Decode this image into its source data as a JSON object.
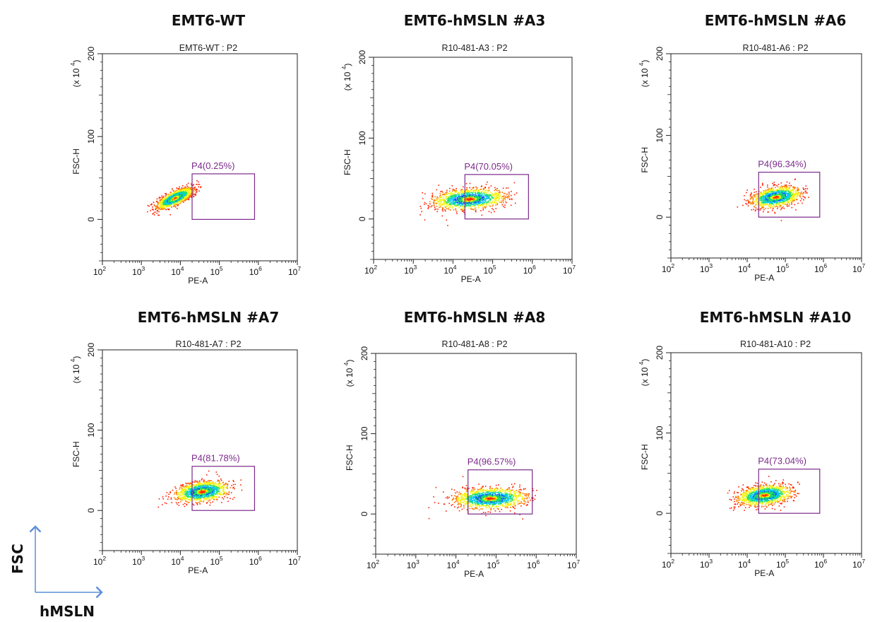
{
  "chart_data": [
    {
      "type": "scatter",
      "title": "EMT6-WT",
      "subtitle": "EMT6-WT : P2",
      "xlabel": "PE-A",
      "ylabel": "FSC-H",
      "y_multiplier": "(x 10",
      "y_multiplier_exp": "4",
      "y_multiplier_close": ")",
      "x_scale": "log",
      "xlim": [
        100,
        10000000
      ],
      "ylim": [
        -50,
        200
      ],
      "x_tick_base": "10",
      "x_tick_exps": [
        "2",
        "3",
        "4",
        "5",
        "6",
        "7"
      ],
      "y_ticks": [
        "0",
        "100",
        "200"
      ],
      "grid": false,
      "gate": {
        "name": "P4",
        "label": "P4(0.25%)",
        "percent": 0.25,
        "x_range": [
          20000,
          800000
        ],
        "y_range": [
          0,
          55
        ]
      },
      "population": {
        "x_center": 7000,
        "x_spread_decades": 0.22,
        "y_center": 26,
        "y_spread": 6,
        "x_min": 1200,
        "x_max": 60000,
        "correlation": 0.75
      }
    },
    {
      "type": "scatter",
      "title": "EMT6-hMSLN #A3",
      "subtitle": "R10-481-A3 : P2",
      "xlabel": "PE-A",
      "ylabel": "FSC-H",
      "y_multiplier": "(x 10",
      "y_multiplier_exp": "4",
      "y_multiplier_close": ")",
      "x_scale": "log",
      "xlim": [
        100,
        10000000
      ],
      "ylim": [
        -50,
        200
      ],
      "x_tick_base": "10",
      "x_tick_exps": [
        "2",
        "3",
        "4",
        "5",
        "6",
        "7"
      ],
      "y_ticks": [
        "0",
        "100",
        "200"
      ],
      "grid": false,
      "gate": {
        "name": "P4",
        "label": "P4(70.05%)",
        "percent": 70.05,
        "x_range": [
          20000,
          800000
        ],
        "y_range": [
          0,
          55
        ]
      },
      "population": {
        "x_center": 25000,
        "x_spread_decades": 0.42,
        "y_center": 25,
        "y_spread": 6,
        "x_min": 1400,
        "x_max": 400000,
        "correlation": 0.2
      }
    },
    {
      "type": "scatter",
      "title": "EMT6-hMSLN #A6",
      "subtitle": "R10-481-A6 : P2",
      "xlabel": "PE-A",
      "ylabel": "FSC-H",
      "y_multiplier": "(x 10",
      "y_multiplier_exp": "4",
      "y_multiplier_close": ")",
      "x_scale": "log",
      "xlim": [
        100,
        10000000
      ],
      "ylim": [
        -50,
        200
      ],
      "x_tick_base": "10",
      "x_tick_exps": [
        "2",
        "3",
        "4",
        "5",
        "6",
        "7"
      ],
      "y_ticks": [
        "0",
        "100",
        "200"
      ],
      "grid": false,
      "gate": {
        "name": "P4",
        "label": "P4(96.34%)",
        "percent": 96.34,
        "x_range": [
          20000,
          800000
        ],
        "y_range": [
          0,
          55
        ]
      },
      "population": {
        "x_center": 55000,
        "x_spread_decades": 0.3,
        "y_center": 25,
        "y_spread": 6,
        "x_min": 5000,
        "x_max": 400000,
        "correlation": 0.35
      }
    },
    {
      "type": "scatter",
      "title": "EMT6-hMSLN #A7",
      "subtitle": "R10-481-A7 : P2",
      "xlabel": "PE-A",
      "ylabel": "FSC-H",
      "y_multiplier": "(x 10",
      "y_multiplier_exp": "4",
      "y_multiplier_close": ")",
      "x_scale": "log",
      "xlim": [
        100,
        10000000
      ],
      "ylim": [
        -50,
        200
      ],
      "x_tick_base": "10",
      "x_tick_exps": [
        "2",
        "3",
        "4",
        "5",
        "6",
        "7"
      ],
      "y_ticks": [
        "0",
        "100",
        "200"
      ],
      "grid": false,
      "gate": {
        "name": "P4",
        "label": "P4(81.78%)",
        "percent": 81.78,
        "x_range": [
          20000,
          800000
        ],
        "y_range": [
          0,
          55
        ]
      },
      "population": {
        "x_center": 35000,
        "x_spread_decades": 0.32,
        "y_center": 24,
        "y_spread": 6,
        "x_min": 2500,
        "x_max": 400000,
        "correlation": 0.3
      }
    },
    {
      "type": "scatter",
      "title": "EMT6-hMSLN #A8",
      "subtitle": "R10-481-A8 : P2",
      "xlabel": "PE-A",
      "ylabel": "FSC-H",
      "y_multiplier": "(x 10",
      "y_multiplier_exp": "4",
      "y_multiplier_close": ")",
      "x_scale": "log",
      "xlim": [
        100,
        10000000
      ],
      "ylim": [
        -50,
        200
      ],
      "x_tick_base": "10",
      "x_tick_exps": [
        "2",
        "3",
        "4",
        "5",
        "6",
        "7"
      ],
      "y_ticks": [
        "0",
        "100",
        "200"
      ],
      "grid": false,
      "gate": {
        "name": "P4",
        "label": "P4(96.57%)",
        "percent": 96.57,
        "x_range": [
          20000,
          800000
        ],
        "y_range": [
          0,
          55
        ]
      },
      "population": {
        "x_center": 70000,
        "x_spread_decades": 0.42,
        "y_center": 20,
        "y_spread": 6,
        "x_min": 1500,
        "x_max": 1000000,
        "correlation": 0.1
      }
    },
    {
      "type": "scatter",
      "title": "EMT6-hMSLN #A10",
      "subtitle": "R10-481-A10 : P2",
      "xlabel": "PE-A",
      "ylabel": "FSC-H",
      "y_multiplier": "(x 10",
      "y_multiplier_exp": "4",
      "y_multiplier_close": ")",
      "x_scale": "log",
      "xlim": [
        100,
        10000000
      ],
      "ylim": [
        -50,
        200
      ],
      "x_tick_base": "10",
      "x_tick_exps": [
        "2",
        "3",
        "4",
        "5",
        "6",
        "7"
      ],
      "y_ticks": [
        "0",
        "100",
        "200"
      ],
      "grid": false,
      "gate": {
        "name": "P4",
        "label": "P4(73.04%)",
        "percent": 73.04,
        "x_range": [
          20000,
          800000
        ],
        "y_range": [
          0,
          55
        ]
      },
      "population": {
        "x_center": 28000,
        "x_spread_decades": 0.33,
        "y_center": 23,
        "y_spread": 6,
        "x_min": 3000,
        "x_max": 350000,
        "correlation": 0.3
      }
    }
  ],
  "legend": {
    "y_axis_label": "FSC",
    "x_axis_label": "hMSLN",
    "arrow_color": "#5b8fd9"
  },
  "colors": {
    "gate": "#7b2a8b",
    "density_scale": [
      "#0000d8",
      "#0a5cff",
      "#00c8ff",
      "#1ee06a",
      "#f2f20c",
      "#ff7a00",
      "#ff1f00"
    ]
  }
}
